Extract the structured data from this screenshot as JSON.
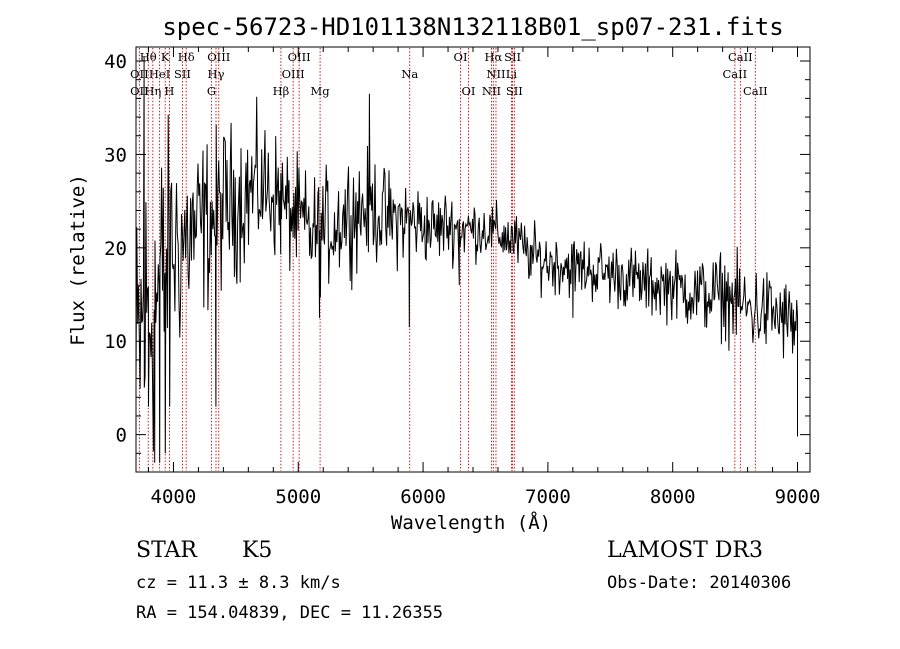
{
  "chart_data": {
    "type": "line",
    "title": "spec-56723-HD101138N132118B01_sp07-231.fits",
    "xlabel": "Wavelength (Å)",
    "ylabel": "Flux (relative)",
    "xlim": [
      3700,
      9100
    ],
    "ylim": [
      -4,
      41.5
    ],
    "xticks": [
      4000,
      5000,
      6000,
      7000,
      8000,
      9000
    ],
    "yticks": [
      0,
      10,
      20,
      30,
      40
    ],
    "grid": false,
    "series": [
      {
        "name": "flux",
        "continuum": [
          [
            3700,
            4
          ],
          [
            3730,
            10
          ],
          [
            3800,
            13
          ],
          [
            3900,
            16
          ],
          [
            4000,
            20
          ],
          [
            4100,
            21
          ],
          [
            4200,
            22
          ],
          [
            4300,
            23
          ],
          [
            4400,
            24.5
          ],
          [
            4500,
            25
          ],
          [
            4600,
            26
          ],
          [
            4700,
            26.5
          ],
          [
            4800,
            26
          ],
          [
            4900,
            24
          ],
          [
            5000,
            23
          ],
          [
            5100,
            21.5
          ],
          [
            5200,
            22
          ],
          [
            5300,
            22.5
          ],
          [
            5400,
            24
          ],
          [
            5500,
            24
          ],
          [
            5600,
            24.5
          ],
          [
            5700,
            23
          ],
          [
            5800,
            23
          ],
          [
            5900,
            23
          ],
          [
            6000,
            22.5
          ],
          [
            6100,
            22
          ],
          [
            6200,
            22.5
          ],
          [
            6300,
            22
          ],
          [
            6400,
            22
          ],
          [
            6500,
            22
          ],
          [
            6600,
            21.5
          ],
          [
            6700,
            21
          ],
          [
            6800,
            20
          ],
          [
            6900,
            19
          ],
          [
            7000,
            18.5
          ],
          [
            7200,
            18
          ],
          [
            7400,
            17.5
          ],
          [
            7600,
            17
          ],
          [
            7800,
            16
          ],
          [
            8000,
            16
          ],
          [
            8200,
            15
          ],
          [
            8400,
            15
          ],
          [
            8600,
            13.5
          ],
          [
            8800,
            13
          ],
          [
            9000,
            11.5
          ]
        ],
        "noise": [
          [
            3700,
            10
          ],
          [
            3900,
            8
          ],
          [
            4100,
            5
          ],
          [
            4500,
            4
          ],
          [
            5000,
            3
          ],
          [
            5500,
            3
          ],
          [
            6000,
            2
          ],
          [
            6500,
            1.5
          ],
          [
            7000,
            1.6
          ],
          [
            8000,
            1.8
          ],
          [
            8600,
            2.4
          ],
          [
            9000,
            2.2
          ]
        ],
        "features": [
          [
            3765,
            40.5
          ],
          [
            3800,
            3
          ],
          [
            3850,
            -3
          ],
          [
            3890,
            -3
          ],
          [
            3935,
            -2
          ],
          [
            3970,
            3
          ],
          [
            4340,
            3
          ],
          [
            4860,
            28
          ],
          [
            5170,
            12.5
          ],
          [
            5570,
            36.5
          ],
          [
            5890,
            11.5
          ],
          [
            6290,
            16
          ],
          [
            6865,
            17
          ],
          [
            7200,
            12.5
          ],
          [
            8190,
            14
          ],
          [
            9000,
            0
          ]
        ],
        "points": 800,
        "seed": 12345
      }
    ],
    "lines": [
      {
        "label": "Hθ",
        "x": 3798,
        "row": 1
      },
      {
        "label": "K",
        "x": 3934,
        "row": 1
      },
      {
        "label": "Hδ",
        "x": 4102,
        "row": 1
      },
      {
        "label": "OIII",
        "x": 4363,
        "row": 1
      },
      {
        "label": "OIII",
        "x": 5007,
        "row": 1
      },
      {
        "label": "OI",
        "x": 6300,
        "row": 1
      },
      {
        "label": "Hα",
        "x": 6563,
        "row": 1
      },
      {
        "label": "SII",
        "x": 6717,
        "row": 1
      },
      {
        "label": "CaII",
        "x": 8542,
        "row": 1
      },
      {
        "label": "OII",
        "x": 3727,
        "row": 2
      },
      {
        "label": "HeI",
        "x": 3889,
        "row": 2
      },
      {
        "label": "SII",
        "x": 4072,
        "row": 2
      },
      {
        "label": "Hγ",
        "x": 4341,
        "row": 2
      },
      {
        "label": "OIII",
        "x": 4959,
        "row": 2
      },
      {
        "label": "Na",
        "x": 5893,
        "row": 2
      },
      {
        "label": "NII",
        "x": 6584,
        "row": 2
      },
      {
        "label": "Li",
        "x": 6708,
        "row": 2
      },
      {
        "label": "CaII",
        "x": 8498,
        "row": 2
      },
      {
        "label": "OII",
        "x": 3727,
        "row": 3
      },
      {
        "label": "Hη",
        "x": 3835,
        "row": 3
      },
      {
        "label": "H",
        "x": 3968,
        "row": 3
      },
      {
        "label": "G",
        "x": 4305,
        "row": 3
      },
      {
        "label": "Hβ",
        "x": 4861,
        "row": 3
      },
      {
        "label": "Mg",
        "x": 5175,
        "row": 3
      },
      {
        "label": "OI",
        "x": 6364,
        "row": 3
      },
      {
        "label": "NII",
        "x": 6548,
        "row": 3
      },
      {
        "label": "SII",
        "x": 6731,
        "row": 3
      },
      {
        "label": "CaII",
        "x": 8662,
        "row": 3
      }
    ],
    "line_color": "#cc0000",
    "spectrum_color": "#000000"
  },
  "info": {
    "object_class": "STAR",
    "subclass": "K5",
    "survey": "LAMOST DR3",
    "redshift": "cz = 11.3 ± 8.3 km/s",
    "obs_date": "Obs-Date: 20140306",
    "coords": "RA = 154.04839, DEC =  11.26355"
  }
}
